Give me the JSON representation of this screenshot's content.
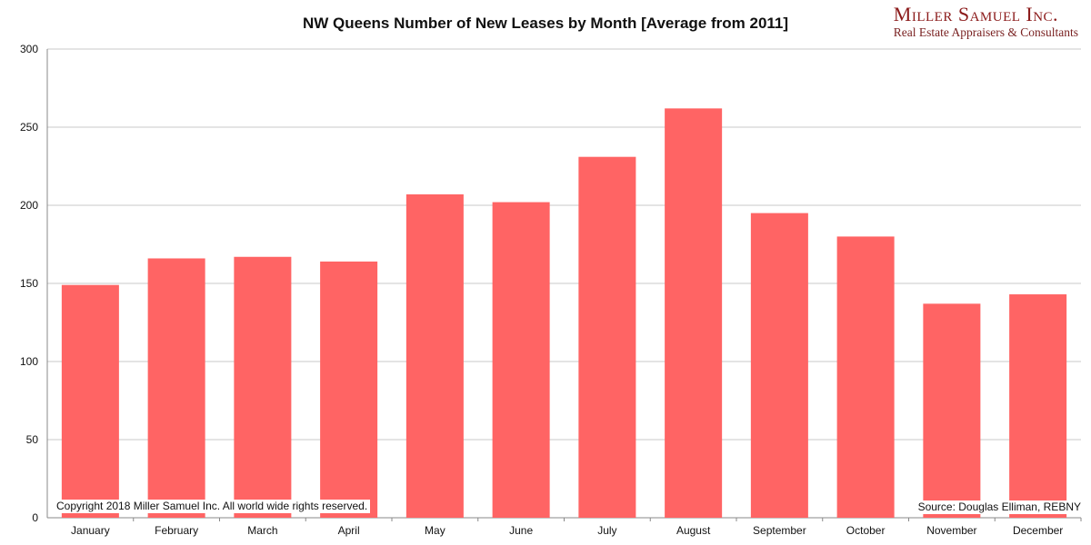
{
  "logo": {
    "name": "Miller Samuel Inc.",
    "tagline": "Real Estate Appraisers & Consultants"
  },
  "notes": {
    "copyright": "Copyright 2018 Miller Samuel Inc.  All world wide rights reserved.",
    "source": "Source: Douglas Elliman, REBNY"
  },
  "colors": {
    "bar": "#ff6464",
    "grid": "#c8c8c8",
    "axis": "#888888"
  },
  "chart_data": {
    "type": "bar",
    "title": "NW Queens Number of New Leases by Month [Average from 2011]",
    "xlabel": "",
    "ylabel": "",
    "categories": [
      "January",
      "February",
      "March",
      "April",
      "May",
      "June",
      "July",
      "August",
      "September",
      "October",
      "November",
      "December"
    ],
    "values": [
      149,
      166,
      167,
      164,
      207,
      202,
      231,
      262,
      195,
      180,
      137,
      143
    ],
    "ylim": [
      0,
      300
    ],
    "yticks": [
      0,
      50,
      100,
      150,
      200,
      250,
      300
    ],
    "grid": true,
    "legend": "none"
  }
}
